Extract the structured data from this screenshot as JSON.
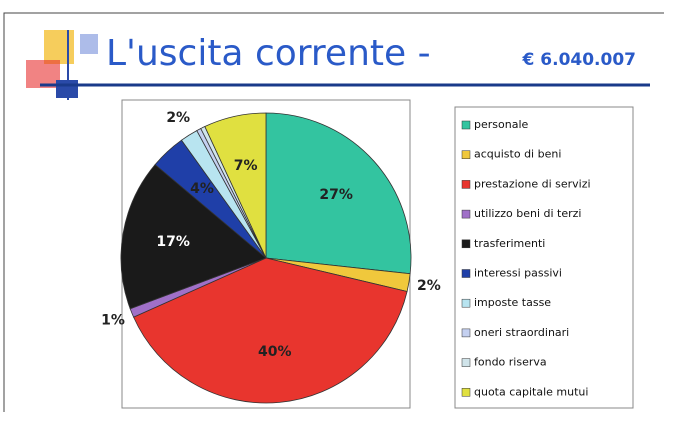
{
  "header": {
    "title": "L'uscita corrente -",
    "amount": "€ 6.040.007"
  },
  "chart_data": {
    "type": "pie",
    "categories": [
      "personale",
      "acquisto di beni",
      "prestazione di servizi",
      "utilizzo beni di terzi",
      "trasferimenti",
      "interessi passivi",
      "imposte tasse",
      "oneri straordinari",
      "fondo riserva",
      "quota capitale mutui"
    ],
    "values": [
      27,
      2,
      40,
      1,
      17,
      4,
      2,
      0.5,
      0.5,
      7
    ],
    "value_labels": [
      "27%",
      "2%",
      "40%",
      "1%",
      "17%",
      "4%",
      "2%",
      null,
      null,
      "7%"
    ],
    "colors": [
      "#33c4a0",
      "#f0c83c",
      "#e8352e",
      "#a070c8",
      "#1a1a1a",
      "#1f3fa8",
      "#b8e4f0",
      "#c4d0f0",
      "#d0e4ea",
      "#e0e040"
    ],
    "legend": "right"
  }
}
